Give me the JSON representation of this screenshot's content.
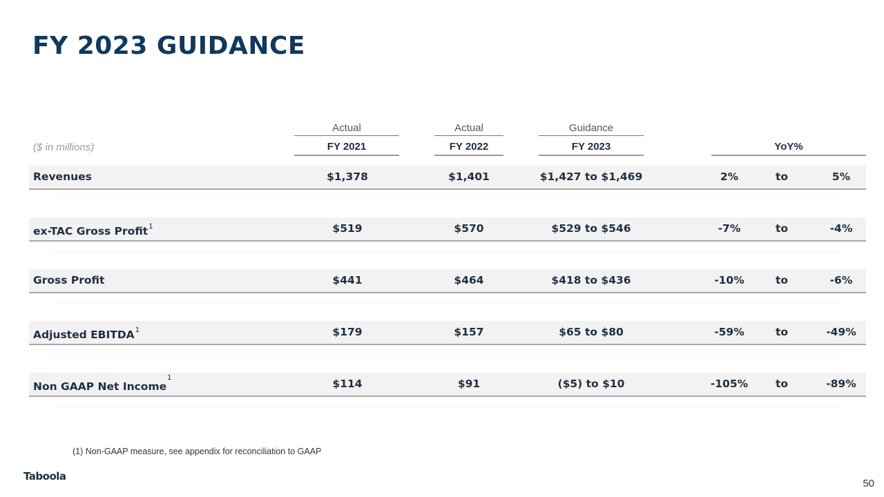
{
  "slide": {
    "title": "FY 2023 GUIDANCE",
    "units": "($ in millions)",
    "footnote": "(1) Non-GAAP measure, see appendix for reconciliation to GAAP",
    "logo": "Taboola",
    "page_number": "50"
  },
  "columns": {
    "fy2021": {
      "top": "Actual",
      "main": "FY 2021"
    },
    "fy2022": {
      "top": "Actual",
      "main": "FY 2022"
    },
    "fy2023": {
      "top": "Guidance",
      "main": "FY 2023"
    },
    "yoy": {
      "main": "YoY%"
    }
  },
  "rows": [
    {
      "label": "Revenues",
      "sup": "",
      "fy2021": "$1,378",
      "fy2022": "$1,401",
      "fy2023": "$1,427 to $1,469",
      "yoy_low": "2%",
      "yoy_to": "to",
      "yoy_high": "5%"
    },
    {
      "label": "ex-TAC Gross Profit",
      "sup": "1",
      "fy2021": "$519",
      "fy2022": "$570",
      "fy2023": "$529 to $546",
      "yoy_low": "-7%",
      "yoy_to": "to",
      "yoy_high": "-4%"
    },
    {
      "label": "Gross Profit",
      "sup": "",
      "fy2021": "$441",
      "fy2022": "$464",
      "fy2023": "$418 to $436",
      "yoy_low": "-10%",
      "yoy_to": "to",
      "yoy_high": "-6%"
    },
    {
      "label": "Adjusted EBITDA",
      "sup": "1",
      "fy2021": "$179",
      "fy2022": "$157",
      "fy2023": "$65 to $80",
      "yoy_low": "-59%",
      "yoy_to": "to",
      "yoy_high": "-49%"
    },
    {
      "label": "Non GAAP Net Income",
      "sup": "1",
      "fy2021": "$114",
      "fy2022": "$91",
      "fy2023": "($5) to $10",
      "yoy_low": "-105%",
      "yoy_to": "to",
      "yoy_high": "-89%"
    }
  ]
}
